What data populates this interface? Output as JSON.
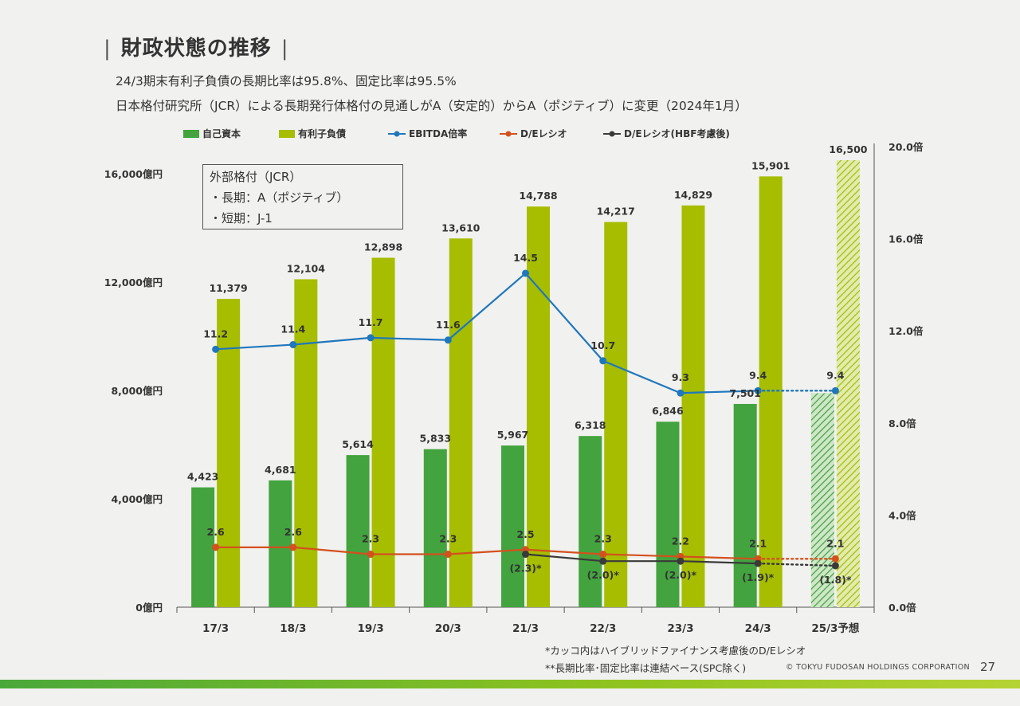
{
  "page": {
    "title": "財政状態の推移",
    "subtitle1": "24/3期末有利子負債の長期比率は95.8%、固定比率は95.5%",
    "subtitle2": "日本格付研究所（JCR）による長期発行体格付の見通しがA（安定的）からA（ポジティブ）に変更（2024年1月）",
    "note1": "*カッコ内はハイブリッドファイナンス考慮後のD/Eレシオ",
    "note2": "**長期比率･固定比率は連結ベース(SPC除く)",
    "copyright": "© TOKYU FUDOSAN HOLDINGS CORPORATION",
    "page_number": "27"
  },
  "rating_box": {
    "line1": "外部格付（JCR）",
    "line2": "・長期：A（ポジティブ）",
    "line3": "・短期：J-1"
  },
  "colors": {
    "equity": "#43a33e",
    "debt": "#a6bd00",
    "ebitda": "#1f77bd",
    "de": "#d4501e",
    "de_hbf": "#3a3a3a"
  },
  "chart_data": {
    "type": "bar",
    "categories": [
      "17/3",
      "18/3",
      "19/3",
      "20/3",
      "21/3",
      "22/3",
      "23/3",
      "24/3",
      "25/3予想"
    ],
    "left_axis": {
      "ylim": [
        0,
        16000
      ],
      "ticks": [
        "0億円",
        "4,000億円",
        "8,000億円",
        "12,000億円",
        "16,000億円"
      ],
      "tick_values": [
        0,
        4000,
        8000,
        12000,
        16000
      ]
    },
    "right_axis": {
      "ylim": [
        0,
        20
      ],
      "ticks": [
        "0.0倍",
        "4.0倍",
        "8.0倍",
        "12.0倍",
        "16.0倍",
        "20.0倍"
      ],
      "tick_values": [
        0,
        4,
        8,
        12,
        16,
        20
      ]
    },
    "series": [
      {
        "name": "自己資本",
        "type": "bar",
        "axis": "left",
        "values": [
          4423,
          4681,
          5614,
          5833,
          5967,
          6318,
          6846,
          7501,
          7900
        ],
        "labels": [
          "4,423",
          "4,681",
          "5,614",
          "5,833",
          "5,967",
          "6,318",
          "6,846",
          "7,501",
          ""
        ]
      },
      {
        "name": "有利子負債",
        "type": "bar",
        "axis": "left",
        "values": [
          11379,
          12104,
          12898,
          13610,
          14788,
          14217,
          14829,
          15901,
          16500
        ],
        "labels": [
          "11,379",
          "12,104",
          "12,898",
          "13,610",
          "14,788",
          "14,217",
          "14,829",
          "15,901",
          "16,500"
        ]
      },
      {
        "name": "EBITDA倍率",
        "type": "line",
        "axis": "right",
        "values": [
          11.2,
          11.4,
          11.7,
          11.6,
          14.5,
          10.7,
          9.3,
          9.4,
          9.4
        ],
        "labels": [
          "11.2",
          "11.4",
          "11.7",
          "11.6",
          "14.5",
          "10.7",
          "9.3",
          "9.4",
          "9.4"
        ]
      },
      {
        "name": "D/Eレシオ",
        "type": "line",
        "axis": "right",
        "values": [
          2.6,
          2.6,
          2.3,
          2.3,
          2.5,
          2.3,
          2.2,
          2.1,
          2.1
        ],
        "labels": [
          "2.6",
          "2.6",
          "2.3",
          "2.3",
          "2.5",
          "2.3",
          "2.2",
          "2.1",
          "2.1"
        ]
      },
      {
        "name": "D/Eレシオ(HBF考慮後)",
        "type": "line",
        "axis": "right",
        "values": [
          null,
          null,
          null,
          null,
          2.3,
          2.0,
          2.0,
          1.9,
          1.8
        ],
        "labels": [
          "",
          "",
          "",
          "",
          "(2.3)*",
          "(2.0)*",
          "(2.0)*",
          "(1.9)*",
          "(1.8)*"
        ]
      }
    ],
    "forecast_category": "25/3予想"
  }
}
